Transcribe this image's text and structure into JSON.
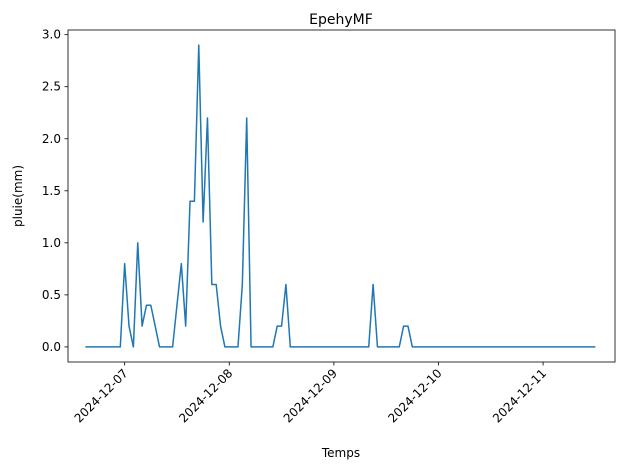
{
  "chart_data": {
    "type": "line",
    "title": "EpehyMF",
    "xlabel": "Temps",
    "ylabel": "pluie(mm)",
    "color": "#1f77b4",
    "x": [
      "2024-12-06 15:00",
      "2024-12-06 16:00",
      "2024-12-06 17:00",
      "2024-12-06 18:00",
      "2024-12-06 19:00",
      "2024-12-06 20:00",
      "2024-12-06 21:00",
      "2024-12-06 22:00",
      "2024-12-06 23:00",
      "2024-12-07 00:00",
      "2024-12-07 01:00",
      "2024-12-07 02:00",
      "2024-12-07 03:00",
      "2024-12-07 04:00",
      "2024-12-07 05:00",
      "2024-12-07 06:00",
      "2024-12-07 07:00",
      "2024-12-07 08:00",
      "2024-12-07 09:00",
      "2024-12-07 10:00",
      "2024-12-07 11:00",
      "2024-12-07 12:00",
      "2024-12-07 13:00",
      "2024-12-07 14:00",
      "2024-12-07 15:00",
      "2024-12-07 16:00",
      "2024-12-07 17:00",
      "2024-12-07 18:00",
      "2024-12-07 19:00",
      "2024-12-07 20:00",
      "2024-12-07 21:00",
      "2024-12-07 22:00",
      "2024-12-07 23:00",
      "2024-12-08 00:00",
      "2024-12-08 01:00",
      "2024-12-08 02:00",
      "2024-12-08 03:00",
      "2024-12-08 04:00",
      "2024-12-08 05:00",
      "2024-12-08 06:00",
      "2024-12-08 07:00",
      "2024-12-08 08:00",
      "2024-12-08 09:00",
      "2024-12-08 10:00",
      "2024-12-08 11:00",
      "2024-12-08 12:00",
      "2024-12-08 13:00",
      "2024-12-08 14:00",
      "2024-12-08 15:00",
      "2024-12-08 16:00",
      "2024-12-08 17:00",
      "2024-12-08 18:00",
      "2024-12-08 19:00",
      "2024-12-08 20:00",
      "2024-12-08 21:00",
      "2024-12-08 22:00",
      "2024-12-08 23:00",
      "2024-12-09 00:00",
      "2024-12-09 01:00",
      "2024-12-09 02:00",
      "2024-12-09 03:00",
      "2024-12-09 04:00",
      "2024-12-09 05:00",
      "2024-12-09 06:00",
      "2024-12-09 07:00",
      "2024-12-09 08:00",
      "2024-12-09 09:00",
      "2024-12-09 10:00",
      "2024-12-09 11:00",
      "2024-12-09 12:00",
      "2024-12-09 13:00",
      "2024-12-09 14:00",
      "2024-12-09 15:00",
      "2024-12-09 16:00",
      "2024-12-09 17:00",
      "2024-12-09 18:00",
      "2024-12-09 19:00",
      "2024-12-09 20:00",
      "2024-12-09 21:00",
      "2024-12-09 22:00",
      "2024-12-09 23:00",
      "2024-12-10 00:00",
      "2024-12-10 01:00",
      "2024-12-10 02:00",
      "2024-12-10 03:00",
      "2024-12-10 04:00",
      "2024-12-10 05:00",
      "2024-12-10 06:00",
      "2024-12-10 07:00",
      "2024-12-10 08:00",
      "2024-12-10 09:00",
      "2024-12-10 10:00",
      "2024-12-10 11:00",
      "2024-12-10 12:00",
      "2024-12-10 13:00",
      "2024-12-10 14:00",
      "2024-12-10 15:00",
      "2024-12-10 16:00",
      "2024-12-10 17:00",
      "2024-12-10 18:00",
      "2024-12-10 19:00",
      "2024-12-10 20:00",
      "2024-12-10 21:00",
      "2024-12-10 22:00",
      "2024-12-10 23:00",
      "2024-12-11 00:00",
      "2024-12-11 01:00",
      "2024-12-11 02:00",
      "2024-12-11 03:00",
      "2024-12-11 04:00",
      "2024-12-11 05:00",
      "2024-12-11 06:00",
      "2024-12-11 07:00",
      "2024-12-11 08:00",
      "2024-12-11 09:00",
      "2024-12-11 10:00",
      "2024-12-11 11:00",
      "2024-12-11 12:00"
    ],
    "values": [
      0,
      0,
      0,
      0,
      0,
      0,
      0,
      0,
      0,
      0.8,
      0.2,
      0,
      1.0,
      0.2,
      0.4,
      0.4,
      0.2,
      0,
      0,
      0,
      0,
      0.4,
      0.8,
      0.2,
      1.4,
      1.4,
      2.9,
      1.2,
      2.2,
      0.6,
      0.6,
      0.2,
      0,
      0,
      0,
      0,
      0.6,
      2.2,
      0,
      0,
      0,
      0,
      0,
      0,
      0.2,
      0.2,
      0.6,
      0,
      0,
      0,
      0,
      0,
      0,
      0,
      0,
      0,
      0,
      0,
      0,
      0,
      0,
      0,
      0,
      0,
      0,
      0,
      0.6,
      0,
      0,
      0,
      0,
      0,
      0,
      0.2,
      0.2,
      0,
      0,
      0,
      0,
      0,
      0,
      0,
      0,
      0,
      0,
      0,
      0,
      0,
      0,
      0,
      0,
      0,
      0,
      0,
      0,
      0,
      0,
      0,
      0,
      0,
      0,
      0,
      0,
      0,
      0,
      0,
      0,
      0,
      0,
      0,
      0,
      0,
      0,
      0,
      0,
      0,
      0,
      0
    ],
    "xlim": [
      "2024-12-06 11:00",
      "2024-12-11 16:30"
    ],
    "xticks": [
      "2024-12-07",
      "2024-12-08",
      "2024-12-09",
      "2024-12-10",
      "2024-12-11"
    ],
    "ylim": [
      -0.145,
      3.045
    ],
    "yticks": [
      {
        "value": 0,
        "label": "0.0"
      },
      0.5,
      {
        "value": 1,
        "label": "1.0"
      },
      1.5,
      {
        "value": 2,
        "label": "2.0"
      },
      2.5,
      {
        "value": 3,
        "label": "3.0"
      }
    ]
  }
}
